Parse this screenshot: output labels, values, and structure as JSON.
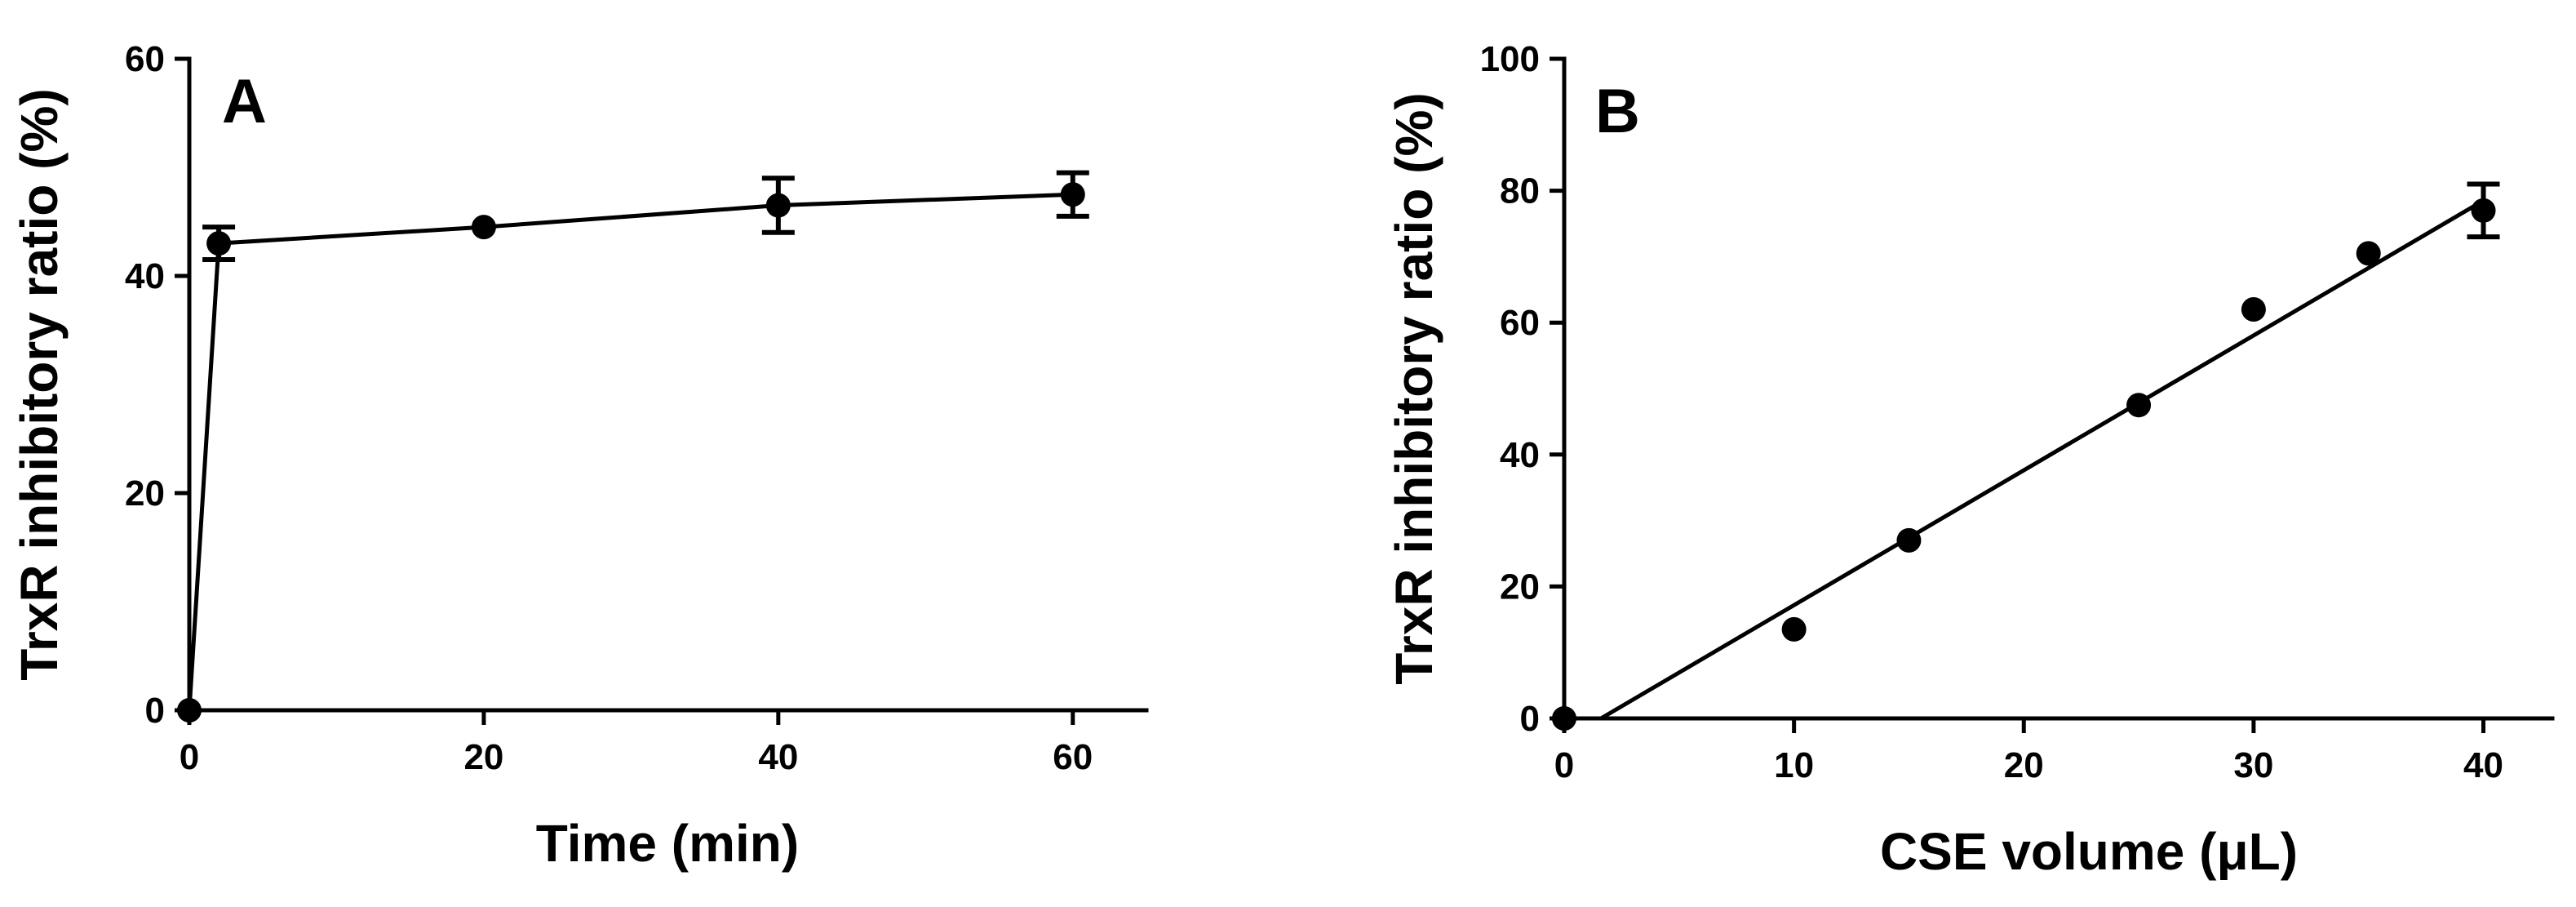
{
  "chart_data": [
    {
      "type": "line",
      "panel_label": "A",
      "xlabel": "Time (min)",
      "ylabel": "TrxR inhibitory ratio (%)",
      "xlim": [
        0,
        65
      ],
      "ylim": [
        0,
        60
      ],
      "x_ticks": [
        0,
        20,
        40,
        60
      ],
      "y_ticks": [
        0,
        20,
        40,
        60
      ],
      "grid": false,
      "series": [
        {
          "x": [
            0,
            2,
            20,
            40,
            60
          ],
          "y": [
            0,
            43,
            44.5,
            46.5,
            47.5
          ],
          "error": [
            0,
            1.5,
            0,
            2.5,
            2
          ],
          "connected": true
        }
      ]
    },
    {
      "type": "scatter",
      "panel_label": "B",
      "xlabel": "CSE volume (μL)",
      "ylabel": "TrxR inhibitory ratio (%)",
      "xlim": [
        0,
        43
      ],
      "ylim": [
        0,
        100
      ],
      "x_ticks": [
        0,
        10,
        20,
        30,
        40
      ],
      "y_ticks": [
        0,
        20,
        40,
        60,
        80,
        100
      ],
      "grid": false,
      "series": [
        {
          "x": [
            0,
            10,
            15,
            25,
            30,
            35,
            40
          ],
          "y": [
            0,
            13.5,
            27,
            47.5,
            62,
            70.5,
            77
          ],
          "error": [
            0,
            0,
            0,
            0,
            0,
            0,
            4
          ],
          "fit_line": {
            "x": [
              1.6,
              40
            ],
            "y": [
              0,
              78.5
            ]
          }
        }
      ]
    }
  ]
}
